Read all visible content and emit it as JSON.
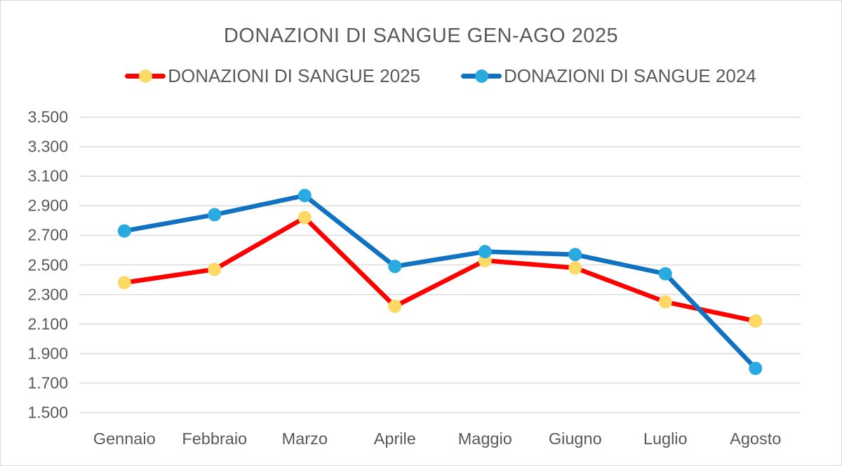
{
  "chart": {
    "title": "DONAZIONI DI SANGUE GEN-AGO 2025",
    "legend": [
      {
        "label": "DONAZIONI DI SANGUE 2025",
        "line_color": "#FE0000",
        "marker_color": "#FFD966"
      },
      {
        "label": "DONAZIONI DI SANGUE 2024",
        "line_color": "#1172C2",
        "marker_color": "#29ABE2"
      }
    ],
    "colors": {
      "grid": "#D6D6D6",
      "text": "#595959",
      "border": "#D9D9D9",
      "background": "#FFFFFF"
    }
  },
  "chart_data": {
    "type": "line",
    "title": "DONAZIONI DI SANGUE GEN-AGO 2025",
    "categories": [
      "Gennaio",
      "Febbraio",
      "Marzo",
      "Aprile",
      "Maggio",
      "Giugno",
      "Luglio",
      "Agosto"
    ],
    "series": [
      {
        "name": "DONAZIONI DI SANGUE 2025",
        "line_color": "#FE0000",
        "marker_color": "#FFD966",
        "values": [
          2380,
          2470,
          2820,
          2220,
          2530,
          2480,
          2250,
          2120
        ]
      },
      {
        "name": "DONAZIONI DI SANGUE 2024",
        "line_color": "#1172C2",
        "marker_color": "#29ABE2",
        "values": [
          2730,
          2840,
          2970,
          2490,
          2590,
          2570,
          2440,
          1800
        ]
      }
    ],
    "xlabel": "",
    "ylabel": "",
    "ylim": [
      1500,
      3500
    ],
    "ytick_step": 200,
    "ytick_labels": [
      "3.500",
      "3.300",
      "3.100",
      "2.900",
      "2.700",
      "2.500",
      "2.300",
      "2.100",
      "1.900",
      "1.700",
      "1.500"
    ],
    "grid": true,
    "legend_position": "top"
  }
}
